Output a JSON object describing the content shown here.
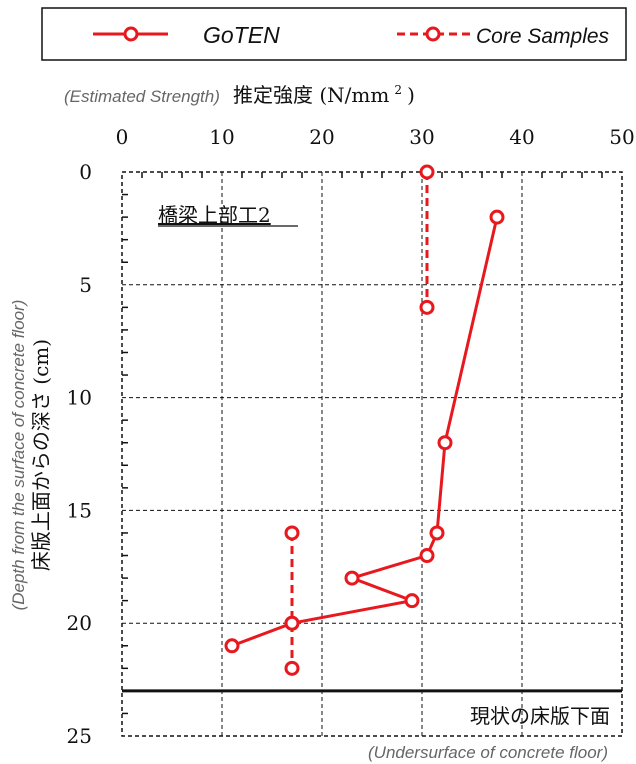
{
  "chart_data": {
    "type": "line",
    "x_axis": {
      "position": "top",
      "label_en": "(Estimated Strength)",
      "label_jp": "推定強度 (N/mm",
      "label_sup": "2",
      "label_close": ")",
      "range": [
        0,
        50
      ],
      "ticks": [
        "0",
        "10",
        "20",
        "30",
        "40",
        "50"
      ]
    },
    "y_axis": {
      "label_en": "(Depth from the surface of concrete floor)",
      "label_jp": "床版上面からの深さ (cm)",
      "range": [
        0,
        25
      ],
      "inverted": true,
      "ticks": [
        "0",
        "5",
        "10",
        "15",
        "20",
        "25"
      ]
    },
    "grid": "dashed",
    "legend": {
      "placement": "top",
      "entries": [
        "GoTEN",
        "Core Samples"
      ]
    },
    "series": [
      {
        "name": "GoTEN",
        "color": "#e8191e",
        "line": "solid",
        "marker": "circle-open",
        "points": [
          {
            "x": 37.5,
            "y": 2
          },
          {
            "x": 32.3,
            "y": 12
          },
          {
            "x": 31.5,
            "y": 16
          },
          {
            "x": 30.5,
            "y": 17
          },
          {
            "x": 23.0,
            "y": 18
          },
          {
            "x": 29.0,
            "y": 19
          },
          {
            "x": 17.0,
            "y": 20
          },
          {
            "x": 11.0,
            "y": 21
          }
        ]
      },
      {
        "name": "Core Samples",
        "color": "#e8191e",
        "line": "dashed",
        "marker": "circle-open",
        "points": [
          {
            "x": 30.5,
            "y": 0
          },
          {
            "x": 30.5,
            "y": 6
          }
        ],
        "points_2": [
          {
            "x": 17.0,
            "y": 16
          },
          {
            "x": 17.0,
            "y": 20
          },
          {
            "x": 17.0,
            "y": 22
          }
        ]
      }
    ],
    "annotations": {
      "title_box": "橋梁上部工2",
      "bottom_line": {
        "y": 23,
        "label_jp": "現状の床版下面",
        "label_en": "(Undersurface of concrete floor)"
      }
    }
  }
}
